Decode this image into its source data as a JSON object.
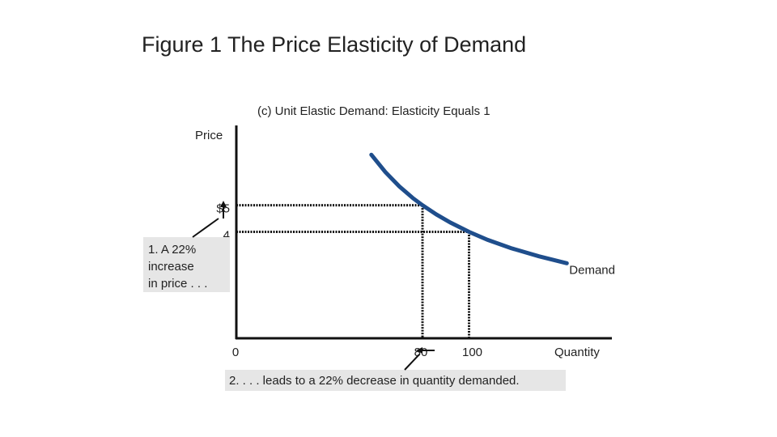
{
  "slide": {
    "title": "Figure 1 The Price Elasticity of Demand"
  },
  "chart_data": {
    "type": "line",
    "title": "(c) Unit Elastic Demand: Elasticity Equals 1",
    "xlabel": "Quantity",
    "ylabel": "Price",
    "xlim": [
      0,
      160
    ],
    "ylim": [
      0,
      8
    ],
    "x_ticks": [
      {
        "value": 0,
        "label": "0"
      },
      {
        "value": 80,
        "label": "80"
      },
      {
        "value": 100,
        "label": "100"
      }
    ],
    "y_ticks": [
      {
        "value": 5,
        "label": "$5"
      },
      {
        "value": 4,
        "label": "4"
      }
    ],
    "series": [
      {
        "name": "Demand",
        "color": "#1f4e8c",
        "x": [
          58,
          64,
          70,
          76,
          80,
          86,
          92,
          100,
          108,
          118,
          130,
          142
        ],
        "y": [
          6.9,
          6.25,
          5.71,
          5.26,
          5.0,
          4.65,
          4.35,
          4.0,
          3.7,
          3.39,
          3.08,
          2.82
        ]
      }
    ],
    "reference_points": [
      {
        "x": 80,
        "y": 5
      },
      {
        "x": 100,
        "y": 4
      }
    ],
    "grid": false,
    "annotations": [
      {
        "text_lines": [
          "1. A 22%",
          "increase",
          "in price . . ."
        ]
      },
      {
        "text_lines": [
          "2. . . . leads to a 22% decrease in quantity demanded."
        ]
      }
    ]
  }
}
